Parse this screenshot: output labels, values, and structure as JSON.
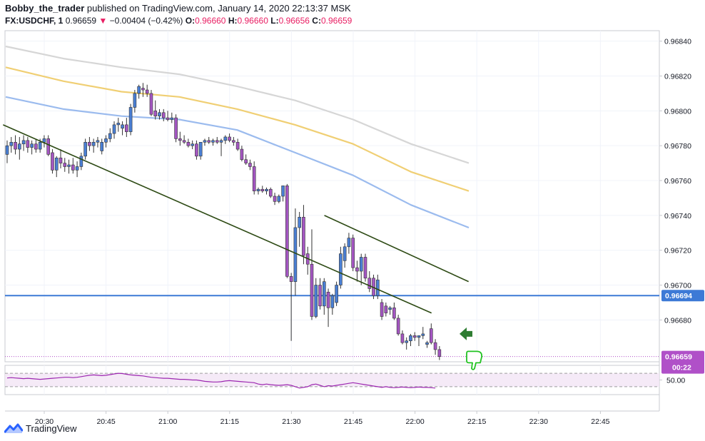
{
  "header": {
    "author": "Bobby_the_trader",
    "published_text": "published on TradingView.com, January 14, 2020 22:13:37 MSK",
    "symbol": "FX:USDCHF, 1",
    "last": "0.96659",
    "change_arrow": "▼",
    "change": "−0.00404 (−0.42%)",
    "o_label": "O:",
    "o_value": "0.96660",
    "h_label": "H:",
    "h_value": "0.96660",
    "l_label": "L:",
    "l_value": "0.96656",
    "c_label": "C:",
    "c_value": "0.96659"
  },
  "footer": {
    "brand": "TradingView",
    "logo_icon": "tradingview-logo-icon"
  },
  "colors": {
    "up_candle": "#4a7fd4",
    "down_candle": "#a456c2",
    "ma_blue": "#9bbbee",
    "ma_yellow": "#f0cf74",
    "ma_gray": "#d6d6d6",
    "trendline": "#2d4a14",
    "level_line": "#3d7ad6",
    "rsi": "#9c27b0",
    "last_price_bg": "#b050c8",
    "arrow": "#2e7d32"
  },
  "chart_data": {
    "type": "candlestick",
    "symbol": "FX:USDCHF",
    "timeframe": "1",
    "x_ticks": [
      "20:30",
      "20:45",
      "21:00",
      "21:15",
      "21:30",
      "21:45",
      "22:00",
      "22:15",
      "22:30",
      "22:45"
    ],
    "y_ticks": [
      "0.96840",
      "0.96820",
      "0.96800",
      "0.96780",
      "0.96760",
      "0.96740",
      "0.96720",
      "0.96700",
      "0.96680"
    ],
    "ylim": [
      0.96656,
      0.96846
    ],
    "candles": [
      [
        0.96775,
        0.96783,
        0.9677,
        0.9678
      ],
      [
        0.9678,
        0.96785,
        0.96776,
        0.96782
      ],
      [
        0.96782,
        0.96786,
        0.96775,
        0.96778
      ],
      [
        0.96778,
        0.96785,
        0.96772,
        0.96781
      ],
      [
        0.96781,
        0.96786,
        0.96777,
        0.96783
      ],
      [
        0.96783,
        0.96785,
        0.96776,
        0.96779
      ],
      [
        0.96779,
        0.96783,
        0.96775,
        0.96781
      ],
      [
        0.96781,
        0.96784,
        0.96776,
        0.96778
      ],
      [
        0.96778,
        0.96784,
        0.96776,
        0.96782
      ],
      [
        0.96782,
        0.96786,
        0.96779,
        0.96784
      ],
      [
        0.96784,
        0.96786,
        0.96774,
        0.96775
      ],
      [
        0.96776,
        0.96778,
        0.96764,
        0.96766
      ],
      [
        0.96766,
        0.96774,
        0.96762,
        0.96773
      ],
      [
        0.96773,
        0.96778,
        0.96767,
        0.9677
      ],
      [
        0.9677,
        0.96773,
        0.96765,
        0.96768
      ],
      [
        0.96768,
        0.96772,
        0.96764,
        0.96769
      ],
      [
        0.96769,
        0.96773,
        0.96764,
        0.96766
      ],
      [
        0.96766,
        0.96771,
        0.96762,
        0.96768
      ],
      [
        0.96768,
        0.96776,
        0.96766,
        0.96774
      ],
      [
        0.96774,
        0.96784,
        0.96772,
        0.96782
      ],
      [
        0.96782,
        0.96785,
        0.96777,
        0.9678
      ],
      [
        0.9678,
        0.96784,
        0.96776,
        0.96782
      ],
      [
        0.96782,
        0.96785,
        0.96779,
        0.96783
      ],
      [
        0.96777,
        0.96784,
        0.96775,
        0.96782
      ],
      [
        0.96782,
        0.96786,
        0.96779,
        0.96784
      ],
      [
        0.96784,
        0.9679,
        0.96782,
        0.96787
      ],
      [
        0.96787,
        0.96794,
        0.96784,
        0.96792
      ],
      [
        0.96792,
        0.96796,
        0.96788,
        0.96793
      ],
      [
        0.9679,
        0.96794,
        0.96786,
        0.96792
      ],
      [
        0.96792,
        0.96796,
        0.96785,
        0.96788
      ],
      [
        0.96788,
        0.96804,
        0.96786,
        0.96802
      ],
      [
        0.96802,
        0.96812,
        0.96799,
        0.9681
      ],
      [
        0.9681,
        0.96815,
        0.96807,
        0.96814
      ],
      [
        0.96813,
        0.96816,
        0.96808,
        0.96812
      ],
      [
        0.96812,
        0.96815,
        0.96808,
        0.9681
      ],
      [
        0.9681,
        0.96812,
        0.96797,
        0.96798
      ],
      [
        0.968,
        0.96806,
        0.96795,
        0.96797
      ],
      [
        0.96797,
        0.96801,
        0.96795,
        0.96799
      ],
      [
        0.96799,
        0.96801,
        0.96794,
        0.96796
      ],
      [
        0.96796,
        0.968,
        0.96794,
        0.96795
      ],
      [
        0.96795,
        0.96799,
        0.96793,
        0.96796
      ],
      [
        0.96796,
        0.96798,
        0.96782,
        0.96784
      ],
      [
        0.96784,
        0.96788,
        0.9678,
        0.96783
      ],
      [
        0.96783,
        0.96786,
        0.96781,
        0.96782
      ],
      [
        0.96782,
        0.96784,
        0.96779,
        0.9678
      ],
      [
        0.9678,
        0.96783,
        0.96778,
        0.96781
      ],
      [
        0.96781,
        0.96783,
        0.96772,
        0.96774
      ],
      [
        0.96774,
        0.96781,
        0.96772,
        0.96782
      ],
      [
        0.96782,
        0.96784,
        0.9678,
        0.96783
      ],
      [
        0.96783,
        0.96785,
        0.96781,
        0.96782
      ],
      [
        0.96782,
        0.96784,
        0.9678,
        0.96783
      ],
      [
        0.96783,
        0.96785,
        0.96781,
        0.96782
      ],
      [
        0.96782,
        0.96784,
        0.96774,
        0.96783
      ],
      [
        0.96783,
        0.96786,
        0.96781,
        0.96785
      ],
      [
        0.96785,
        0.96787,
        0.96782,
        0.96783
      ],
      [
        0.96783,
        0.96785,
        0.9678,
        0.96782
      ],
      [
        0.96782,
        0.96784,
        0.96777,
        0.96778
      ],
      [
        0.96778,
        0.9678,
        0.96771,
        0.96772
      ],
      [
        0.96772,
        0.96775,
        0.96769,
        0.9677
      ],
      [
        0.9677,
        0.96772,
        0.96766,
        0.96768
      ],
      [
        0.96768,
        0.96771,
        0.96752,
        0.96754
      ],
      [
        0.96754,
        0.96756,
        0.96752,
        0.96755
      ],
      [
        0.96755,
        0.96757,
        0.96753,
        0.96754
      ],
      [
        0.96754,
        0.96756,
        0.96752,
        0.96755
      ],
      [
        0.96755,
        0.96756,
        0.9675,
        0.96751
      ],
      [
        0.96751,
        0.96753,
        0.96746,
        0.96748
      ],
      [
        0.96748,
        0.96752,
        0.96747,
        0.96751
      ],
      [
        0.96751,
        0.96756,
        0.96748,
        0.96757
      ],
      [
        0.96757,
        0.96758,
        0.96704,
        0.96705
      ],
      [
        0.96705,
        0.96707,
        0.96668,
        0.96702
      ],
      [
        0.96702,
        0.96744,
        0.96694,
        0.96733
      ],
      [
        0.96733,
        0.96742,
        0.96722,
        0.96739
      ],
      [
        0.96739,
        0.96746,
        0.96712,
        0.96717
      ],
      [
        0.96718,
        0.96722,
        0.96706,
        0.96712
      ],
      [
        0.96712,
        0.96732,
        0.9668,
        0.96682
      ],
      [
        0.96682,
        0.96704,
        0.96681,
        0.967
      ],
      [
        0.967,
        0.96704,
        0.96686,
        0.96688
      ],
      [
        0.96688,
        0.96704,
        0.96683,
        0.96702
      ],
      [
        0.96696,
        0.96698,
        0.96676,
        0.96687
      ],
      [
        0.96687,
        0.96695,
        0.96683,
        0.96694
      ],
      [
        0.9669,
        0.96702,
        0.96688,
        0.967
      ],
      [
        0.967,
        0.96722,
        0.96698,
        0.96718
      ],
      [
        0.96714,
        0.96724,
        0.9671,
        0.96722
      ],
      [
        0.96722,
        0.9673,
        0.96718,
        0.96727
      ],
      [
        0.96727,
        0.96729,
        0.96708,
        0.9671
      ],
      [
        0.9671,
        0.96714,
        0.96702,
        0.96708
      ],
      [
        0.96708,
        0.96718,
        0.967,
        0.96716
      ],
      [
        0.96716,
        0.96718,
        0.96702,
        0.96704
      ],
      [
        0.96704,
        0.96708,
        0.96696,
        0.96698
      ],
      [
        0.96704,
        0.96706,
        0.96692,
        0.96694
      ],
      [
        0.96694,
        0.96706,
        0.96692,
        0.96703
      ],
      [
        0.9669,
        0.96692,
        0.9668,
        0.96682
      ],
      [
        0.96688,
        0.9669,
        0.96682,
        0.96684
      ],
      [
        0.96686,
        0.96688,
        0.96683,
        0.96687
      ],
      [
        0.96687,
        0.9669,
        0.9668,
        0.96681
      ],
      [
        0.96681,
        0.96683,
        0.96671,
        0.96672
      ],
      [
        0.96672,
        0.96674,
        0.96666,
        0.96667
      ],
      [
        0.96667,
        0.9667,
        0.96663,
        0.96668
      ],
      [
        0.96668,
        0.96672,
        0.96665,
        0.96671
      ],
      [
        0.96671,
        0.96673,
        0.96668,
        0.9667
      ],
      [
        0.9667,
        0.96671,
        0.96665,
        0.96671
      ],
      [
        0.96671,
        0.96676,
        0.96669,
        0.96672
      ],
      [
        0.96666,
        0.96668,
        0.96664,
        0.96667
      ],
      [
        0.96675,
        0.96678,
        0.96666,
        0.96667
      ],
      [
        0.96667,
        0.96669,
        0.9666,
        0.96663
      ],
      [
        0.96663,
        0.96665,
        0.96657,
        0.96659
      ]
    ],
    "moving_averages": [
      {
        "color": "#d6d6d6",
        "values": [
          0.96837,
          0.9683,
          0.96825,
          0.96821,
          0.96814,
          0.96806,
          0.96795,
          0.96781,
          0.9677
        ]
      },
      {
        "color": "#f0cf74",
        "values": [
          0.96825,
          0.96817,
          0.96811,
          0.96808,
          0.96801,
          0.96792,
          0.96781,
          0.96765,
          0.96754
        ]
      },
      {
        "color": "#9bbbee",
        "values": [
          0.96808,
          0.96801,
          0.96797,
          0.96795,
          0.96789,
          0.96776,
          0.96763,
          0.96746,
          0.96733
        ]
      }
    ],
    "trendlines": [
      {
        "from": [
          "20:20",
          0.96792
        ],
        "to": [
          "22:04",
          0.96684
        ]
      },
      {
        "from": [
          "21:38",
          0.9674
        ],
        "to": [
          "22:13",
          0.96702
        ]
      }
    ],
    "horizontal_level": 0.96694,
    "last_price_label": "0.96659",
    "countdown_label": "00:22",
    "rsi": {
      "label": "50.00",
      "values": [
        56,
        57,
        56,
        55,
        54,
        55,
        54,
        53,
        52,
        53,
        54,
        55,
        56,
        57,
        58,
        58,
        57,
        58,
        60,
        62,
        64,
        65,
        64,
        63,
        64,
        66,
        68,
        70,
        69,
        67,
        65,
        64,
        63,
        62,
        60,
        58,
        57,
        56,
        55,
        55,
        54,
        53,
        52,
        52,
        51,
        50,
        50,
        48,
        46,
        45,
        44,
        44,
        45,
        47,
        48,
        47,
        46,
        45,
        44,
        43,
        42,
        38,
        36,
        38,
        36,
        35,
        34,
        35,
        36,
        34,
        30,
        26,
        28,
        30,
        36,
        38,
        34,
        30,
        33,
        32,
        34,
        36,
        38,
        40,
        42,
        40,
        38,
        36,
        34,
        32,
        30,
        28,
        30,
        28,
        27,
        28,
        29,
        28,
        27,
        28,
        29,
        28,
        28,
        27,
        26
      ]
    }
  }
}
